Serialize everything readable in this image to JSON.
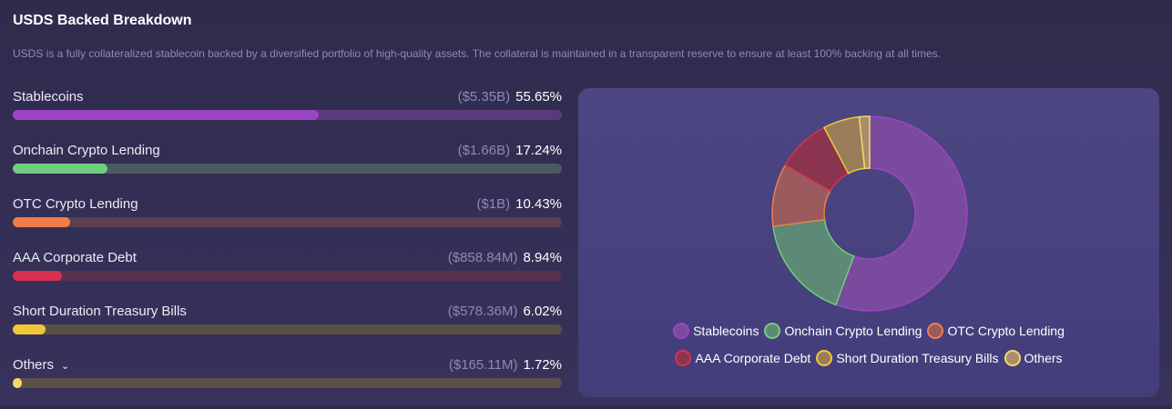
{
  "title": "USDS Backed Breakdown",
  "description": "USDS is a fully collateralized stablecoin backed by a diversified portfolio of high-quality assets. The collateral is maintained in a transparent reserve to ensure at least 100% backing at all times.",
  "others_chevron": "chevron-down-icon",
  "chart_data": {
    "type": "pie",
    "categories": [
      "Stablecoins",
      "Onchain Crypto Lending",
      "OTC Crypto Lending",
      "AAA Corporate Debt",
      "Short Duration Treasury Bills",
      "Others"
    ],
    "amounts": [
      "($5.35B)",
      "($1.66B)",
      "($1B)",
      "($858.84M)",
      "($578.36M)",
      "($165.11M)"
    ],
    "percent_labels": [
      "55.65%",
      "17.24%",
      "10.43%",
      "8.94%",
      "6.02%",
      "1.72%"
    ],
    "values": [
      55.65,
      17.24,
      10.43,
      8.94,
      6.02,
      1.72
    ],
    "colors": [
      "#9b45c4",
      "#6fcf7f",
      "#ee7f48",
      "#d9304f",
      "#f1c73a",
      "#f5d86a"
    ],
    "fills": [
      "#7a4a9e",
      "#5c8a76",
      "#9a5a5e",
      "#8a3450",
      "#9a7e5a",
      "#a88e6e"
    ],
    "tracks": [
      "#5a3a78",
      "#4a5a62",
      "#5a4050",
      "#5a3050",
      "#5a5048",
      "#5a5048"
    ],
    "legend": "bottom"
  }
}
